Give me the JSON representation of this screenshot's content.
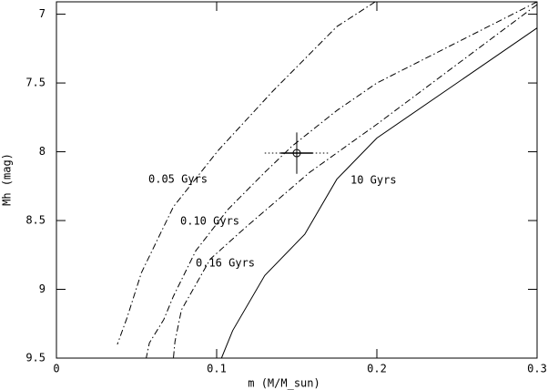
{
  "chart_data": {
    "type": "line",
    "xlabel": "m (M/M_sun)",
    "ylabel": "Mh (mag)",
    "xlim": [
      0,
      0.3
    ],
    "xticks": [
      0,
      0.1,
      0.2,
      0.3
    ],
    "ylim": [
      9.5,
      6.91
    ],
    "yticks": [
      7,
      7.5,
      8,
      8.5,
      9,
      9.5
    ],
    "color": "#000000",
    "series": [
      {
        "name": "0.05 Gyrs",
        "style": "dashdot",
        "x": [
          0.199,
          0.175,
          0.135,
          0.101,
          0.073,
          0.053,
          0.044,
          0.038
        ],
        "values": [
          6.91,
          7.09,
          7.56,
          7.99,
          8.4,
          8.88,
          9.21,
          9.4
        ]
      },
      {
        "name": "0.10 Gyrs",
        "style": "dashdot",
        "x": [
          0.3,
          0.2,
          0.175,
          0.147,
          0.13,
          0.107,
          0.087,
          0.073,
          0.067,
          0.058,
          0.056
        ],
        "values": [
          6.91,
          7.5,
          7.7,
          7.96,
          8.15,
          8.42,
          8.72,
          9.05,
          9.22,
          9.39,
          9.5
        ]
      },
      {
        "name": "0.16 Gyrs",
        "style": "dashdot",
        "x": [
          0.3,
          0.2,
          0.158,
          0.118,
          0.096,
          0.078,
          0.074,
          0.073
        ],
        "values": [
          6.93,
          7.8,
          8.15,
          8.55,
          8.78,
          9.15,
          9.38,
          9.5
        ]
      },
      {
        "name": "10 Gyrs",
        "style": "solid",
        "x": [
          0.3,
          0.2,
          0.175,
          0.155,
          0.13,
          0.11,
          0.103
        ],
        "values": [
          7.1,
          7.9,
          8.2,
          8.6,
          8.9,
          9.3,
          9.5
        ]
      }
    ],
    "points": [
      {
        "x": 0.15,
        "y": 8.01,
        "xerr": 0.02,
        "yerr": 0.15
      }
    ]
  }
}
